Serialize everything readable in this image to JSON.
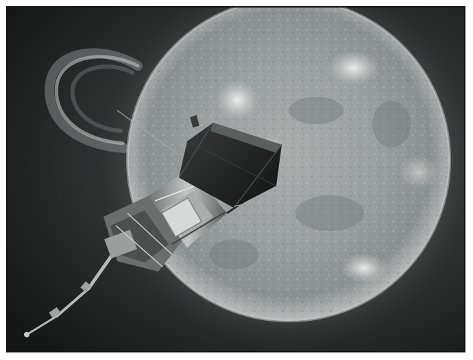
{
  "image": {
    "subject": "spacecraft-near-sun",
    "colors": {
      "frame_border": "#111111",
      "space_dark": "#1f2020",
      "sun_bright": "#c9cccb",
      "sun_mid": "#8f9493",
      "corona_glow": "#7d8382",
      "spacecraft_dark": "#2a2c2c",
      "spacecraft_light": "#b9bcbb"
    }
  }
}
